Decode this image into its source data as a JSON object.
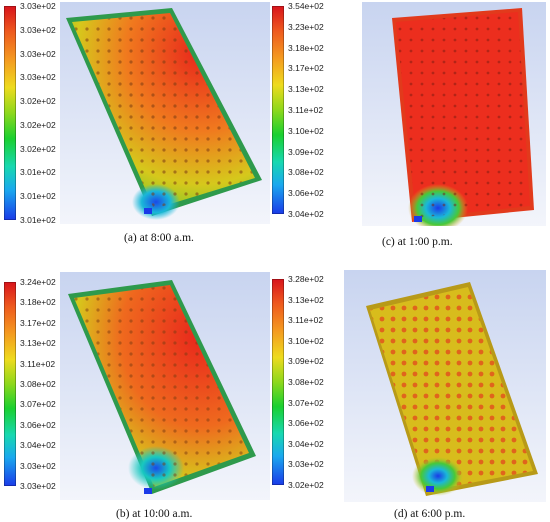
{
  "panels": [
    {
      "caption": "(a) at 8:00 a.m.",
      "legend": [
        "3.03e+02",
        "3.03e+02",
        "3.03e+02",
        "3.03e+02",
        "3.02e+02",
        "3.02e+02",
        "3.02e+02",
        "3.01e+02",
        "3.01e+02",
        "3.01e+02"
      ],
      "legend_colors": [
        "#d8141c",
        "#1a3ae8"
      ]
    },
    {
      "caption": "(c) at 1:00 p.m.",
      "legend": [
        "3.54e+02",
        "3.23e+02",
        "3.18e+02",
        "3.17e+02",
        "3.13e+02",
        "3.11e+02",
        "3.10e+02",
        "3.09e+02",
        "3.08e+02",
        "3.06e+02",
        "3.04e+02"
      ],
      "legend_colors": [
        "#d8141c",
        "#1a3ae8"
      ]
    },
    {
      "caption": "(b) at 10:00 a.m.",
      "legend": [
        "3.24e+02",
        "3.18e+02",
        "3.17e+02",
        "3.13e+02",
        "3.11e+02",
        "3.08e+02",
        "3.07e+02",
        "3.06e+02",
        "3.04e+02",
        "3.03e+02",
        "3.03e+02"
      ],
      "legend_colors": [
        "#d8141c",
        "#1a3ae8"
      ]
    },
    {
      "caption": "(d) at 6:00 p.m.",
      "legend": [
        "3.28e+02",
        "3.13e+02",
        "3.11e+02",
        "3.10e+02",
        "3.09e+02",
        "3.08e+02",
        "3.07e+02",
        "3.06e+02",
        "3.04e+02",
        "3.03e+02",
        "3.02e+02"
      ],
      "legend_colors": [
        "#d8141c",
        "#1a3ae8"
      ]
    }
  ]
}
